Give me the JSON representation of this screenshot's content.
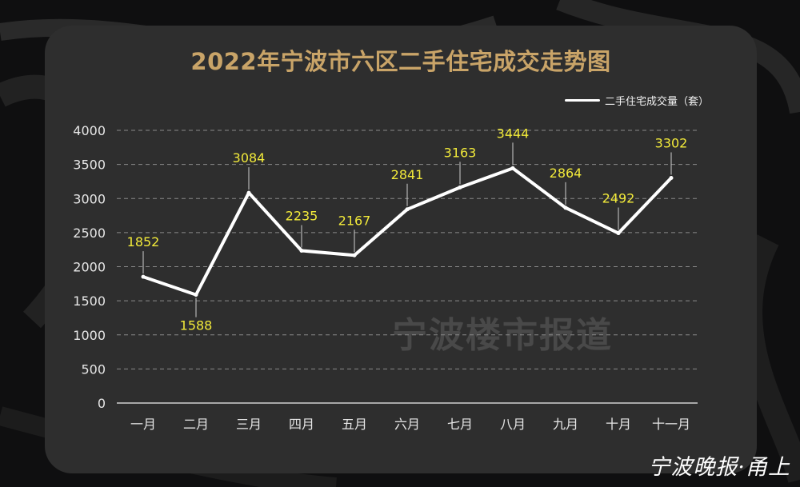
{
  "colors": {
    "title": "#c9a468",
    "line": "#ffffff",
    "label": "#f2ea3a",
    "axis": "#e6e6e6",
    "grid": "#8a8a8a"
  },
  "chart_data": {
    "type": "line",
    "title": "2022年宁波市六区二手住宅成交走势图",
    "categories": [
      "一月",
      "二月",
      "三月",
      "四月",
      "五月",
      "六月",
      "七月",
      "八月",
      "九月",
      "十月",
      "十一月"
    ],
    "series": [
      {
        "name": "二手住宅成交量（套）",
        "values": [
          1852,
          1588,
          3084,
          2235,
          2167,
          2841,
          3163,
          3444,
          2864,
          2492,
          3302
        ]
      }
    ],
    "yticks": [
      0,
      500,
      1000,
      1500,
      2000,
      2500,
      3000,
      3500,
      4000
    ],
    "ylim": [
      0,
      4000
    ],
    "grid": true,
    "legend": "top-right"
  },
  "watermark": "宁波楼市报道",
  "brand": "宁波晚报·甬上"
}
